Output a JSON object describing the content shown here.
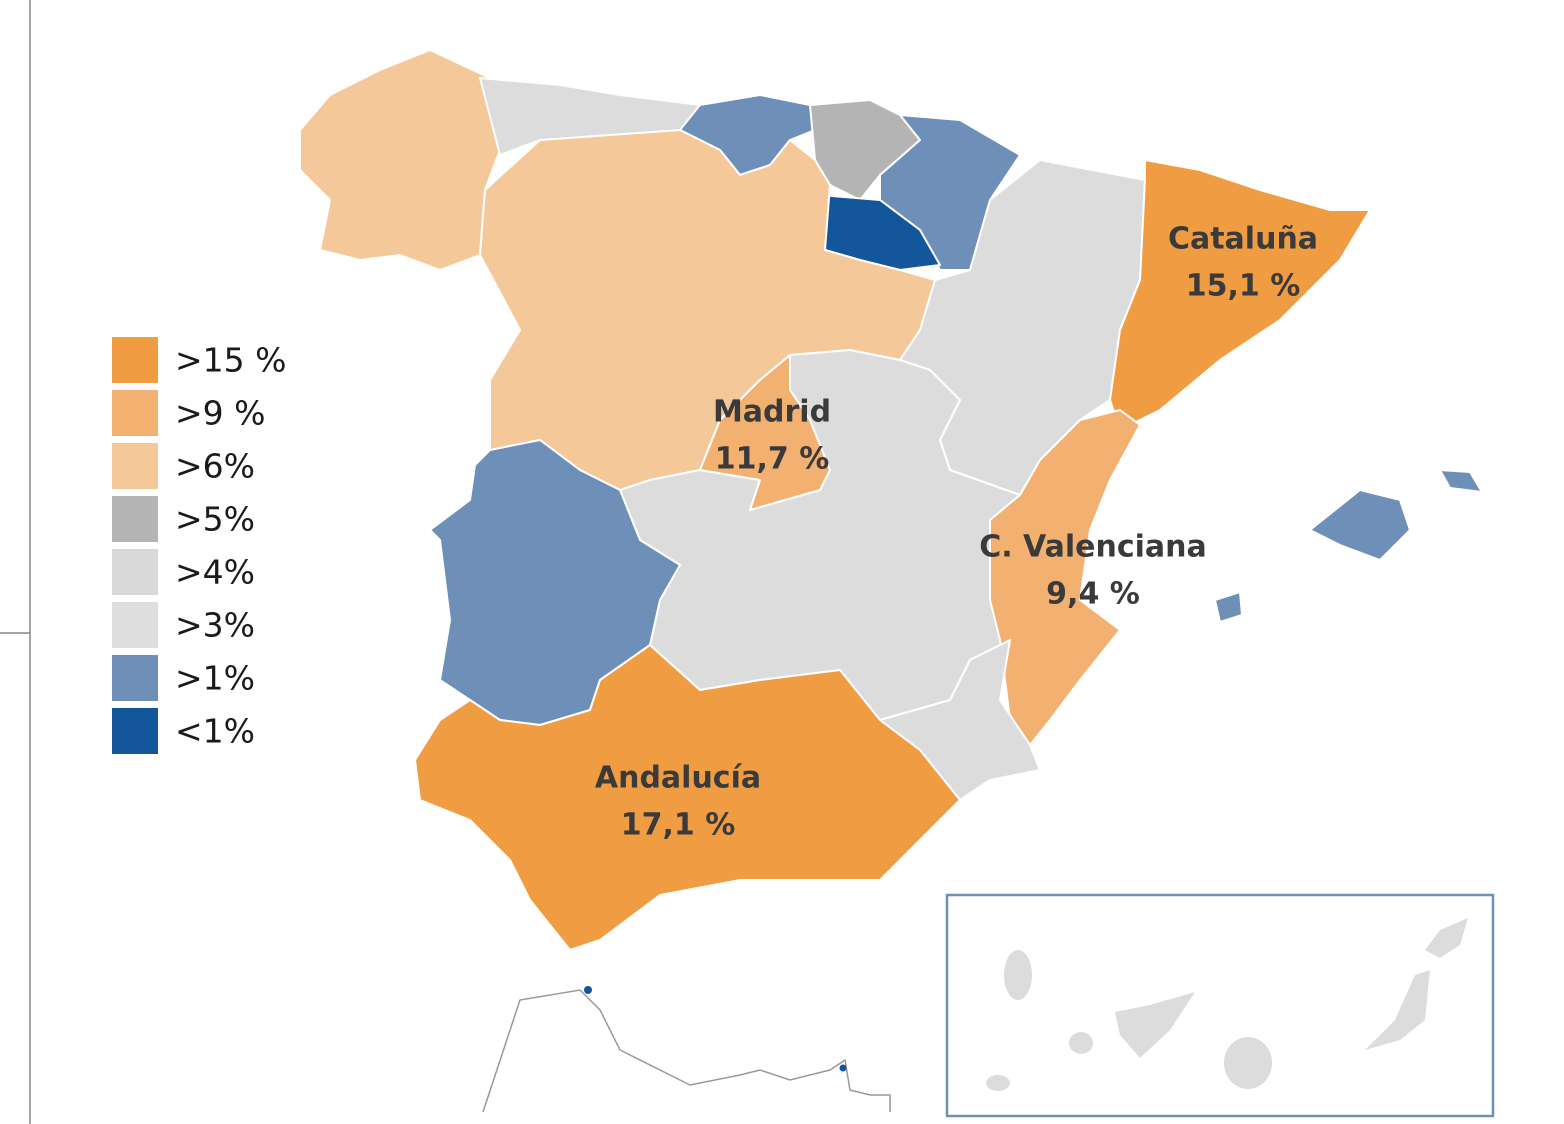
{
  "legend": [
    {
      "label": ">15 %",
      "color": "#f09c42"
    },
    {
      "label": ">9 %",
      "color": "#f2b071"
    },
    {
      "label": ">6%",
      "color": "#f4c899"
    },
    {
      "label": ">5%",
      "color": "#b4b4b4"
    },
    {
      "label": ">4%",
      "color": "#d9d9d9"
    },
    {
      "label": ">3%",
      "color": "#dedede"
    },
    {
      "label": ">1%",
      "color": "#6d8fb8"
    },
    {
      "label": "<1%",
      "color": "#13569a"
    }
  ],
  "regions": [
    {
      "name": "Cataluña",
      "value": "15,1 %"
    },
    {
      "name": "Madrid",
      "value": "11,7 %"
    },
    {
      "name": "C. Valenciana",
      "value": "9,4 %"
    },
    {
      "name": "Andalucía",
      "value": "17,1 %"
    }
  ]
}
